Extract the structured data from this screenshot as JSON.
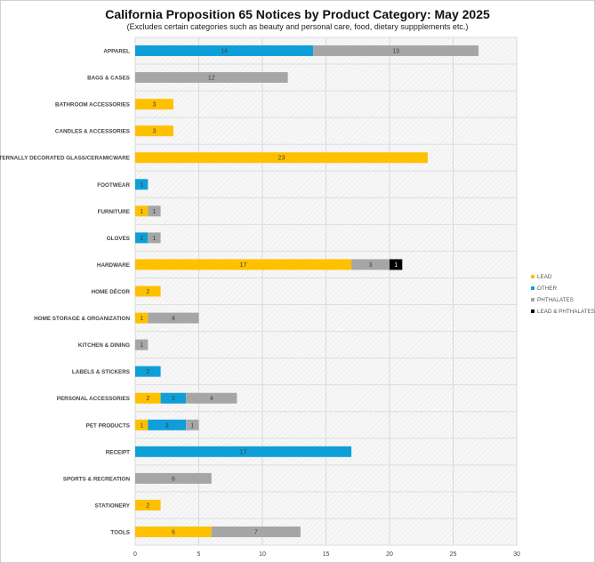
{
  "chart_data": {
    "type": "bar",
    "orientation": "horizontal",
    "stacked": true,
    "title": "California Proposition 65 Notices by Product Category: May 2025",
    "subtitle": "(Excludes certain categories such as beauty and personal care, food, dietary suppplements etc.)",
    "xlim": [
      0,
      30
    ],
    "xticks": [
      0,
      5,
      10,
      15,
      20,
      25,
      30
    ],
    "grid": true,
    "legend_placement": "right",
    "categories": [
      "APPAREL",
      "BAGS & CASES",
      "BATHROOM ACCESSORIES",
      "CANDLES & ACCESSORIES",
      "EXTERNALLY DECORATED GLASS/CERAMICWARE",
      "FOOTWEAR",
      "FURNITURE",
      "GLOVES",
      "HARDWARE",
      "HOME DÉCOR",
      "HOME STORAGE & ORGANIZATION",
      "KITCHEN & DINING",
      "LABELS & STICKERS",
      "PERSONAL ACCESSORIES",
      "PET PRODUCTS",
      "RECEIPT",
      "SPORTS & RECREATION",
      "STATIONERY",
      "TOOLS"
    ],
    "series": [
      {
        "name": "LEAD",
        "color": "#FFC000",
        "values": [
          0,
          0,
          3,
          3,
          23,
          0,
          1,
          0,
          17,
          2,
          1,
          0,
          0,
          2,
          1,
          0,
          0,
          2,
          6
        ]
      },
      {
        "name": "OTHER",
        "color": "#0E9FD8",
        "values": [
          14,
          0,
          0,
          0,
          0,
          1,
          0,
          1,
          0,
          0,
          0,
          0,
          2,
          2,
          3,
          17,
          0,
          0,
          0
        ]
      },
      {
        "name": "PHTHALATES",
        "color": "#A6A6A6",
        "values": [
          13,
          12,
          0,
          0,
          0,
          0,
          1,
          1,
          3,
          0,
          4,
          1,
          0,
          4,
          1,
          0,
          6,
          0,
          7
        ]
      },
      {
        "name": "LEAD & PHTHALATES",
        "color": "#000000",
        "values": [
          0,
          0,
          0,
          0,
          0,
          0,
          0,
          0,
          1,
          0,
          0,
          0,
          0,
          0,
          0,
          0,
          0,
          0,
          0
        ]
      }
    ]
  }
}
